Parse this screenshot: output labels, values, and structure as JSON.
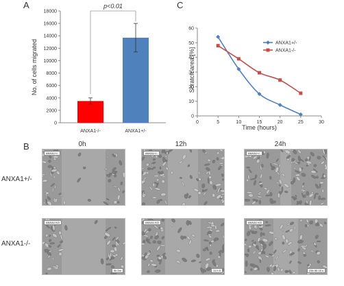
{
  "panels": {
    "a": "A",
    "b": "B",
    "c": "C"
  },
  "chart_data": [
    {
      "type": "bar",
      "categories": [
        "ANXA1-/-",
        "ANXA1+/-"
      ],
      "values": [
        3500,
        13700
      ],
      "errors": [
        500,
        2300
      ],
      "colors": [
        "#ff0000",
        "#4f81bd"
      ],
      "ylabel": "No. of cells migrated",
      "ylim": [
        0,
        18000
      ],
      "yticks": [
        0,
        2000,
        4000,
        6000,
        8000,
        10000,
        12000,
        14000,
        16000,
        18000
      ],
      "annotation": "p<0.01",
      "grid": false
    },
    {
      "type": "line",
      "x": [
        5,
        10,
        15,
        20,
        25
      ],
      "series": [
        {
          "name": "ANXA1+/-",
          "color": "#4f81bd",
          "marker": "diamond",
          "values": [
            54,
            32,
            15,
            7.5,
            1
          ]
        },
        {
          "name": "ANXA1-/-",
          "color": "#c0504d",
          "marker": "square",
          "values": [
            48,
            39,
            29.5,
            24.5,
            15.5
          ]
        }
      ],
      "xlabel": "Time (hours)",
      "ylabel": "Scratch area [%]",
      "xlim": [
        0,
        30
      ],
      "ylim": [
        0,
        60
      ],
      "xticks": [
        0,
        5,
        10,
        15,
        20,
        25,
        30
      ],
      "yticks": [
        0,
        10,
        20,
        30,
        40,
        50,
        60
      ],
      "legend": "top-right",
      "grid": false
    }
  ],
  "micrographs": {
    "columns": [
      "0h",
      "12h",
      "24h"
    ],
    "rows": [
      "ANXA1+/-",
      "ANXA1-/-"
    ],
    "tags": [
      [
        "ANXA1+/-",
        "ANXA1+/-",
        "ANXA1+/-"
      ],
      [
        "ANXA1 KO",
        "ANXA1 KO",
        "ANXA1 KO"
      ]
    ],
    "scale_tags": [
      [
        "",
        "",
        ""
      ],
      [
        "0h 0m",
        "11 h 5",
        "23h 55 15 s"
      ]
    ]
  }
}
